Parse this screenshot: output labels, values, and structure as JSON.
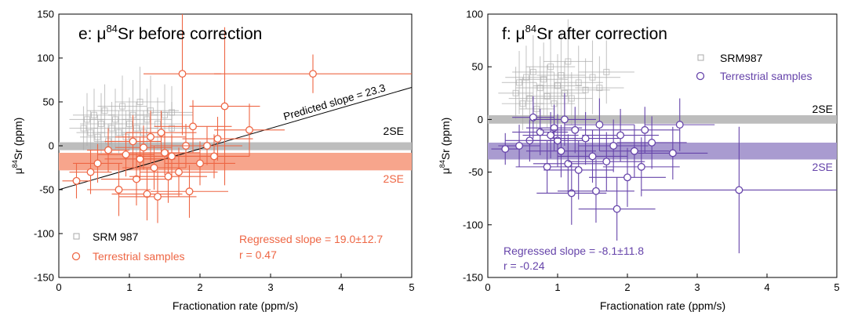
{
  "chart_data": [
    {
      "type": "scatter",
      "panel_title": "e: μ⁸⁴Sr before correction",
      "title_prefix": "e: μ",
      "title_sup": "84",
      "title_suffix": "Sr before correction",
      "xlabel": "Fractionation rate (ppm/s)",
      "ylabel_prefix": "μ",
      "ylabel_sup": "84",
      "ylabel_suffix": "Sr (ppm)",
      "xlim": [
        0,
        5
      ],
      "ylim": [
        -150,
        150
      ],
      "xticks": [
        "0",
        "1",
        "2",
        "3",
        "4",
        "5"
      ],
      "yticks": [
        "-150",
        "-100",
        "-50",
        "0",
        "50",
        "100",
        "150"
      ],
      "grid": false,
      "legend_position": "bottom-left",
      "colors": {
        "srm": "#aaaaaa",
        "terrestrial": "#ee6644",
        "band_srm": "#bdbdbd",
        "band_terr": "#f7a58c"
      },
      "bands": [
        {
          "name": "srm-2se",
          "y": [
            -5,
            4
          ],
          "label": "2SE"
        },
        {
          "name": "terrestrial-2se",
          "y": [
            -28,
            -8
          ],
          "label": "2SE"
        }
      ],
      "lines": [
        {
          "name": "predicted",
          "x": [
            0,
            5
          ],
          "y": [
            -50,
            66.5
          ],
          "label": "Predicted slope = 23.3"
        }
      ],
      "annotations": [
        {
          "text": "Regressed slope = 19.0±12.7",
          "color": "#ee6644"
        },
        {
          "text": "r = 0.47",
          "color": "#ee6644"
        }
      ],
      "series": [
        {
          "name": "SRM 987",
          "marker": "square",
          "points": [
            {
              "x": 0.35,
              "y": 20,
              "xerr": 0.2,
              "yerr": 25
            },
            {
              "x": 0.4,
              "y": 30,
              "xerr": 0.25,
              "yerr": 30
            },
            {
              "x": 0.45,
              "y": 15,
              "xerr": 0.2,
              "yerr": 25
            },
            {
              "x": 0.5,
              "y": 35,
              "xerr": 0.3,
              "yerr": 30
            },
            {
              "x": 0.55,
              "y": 10,
              "xerr": 0.25,
              "yerr": 25
            },
            {
              "x": 0.6,
              "y": 25,
              "xerr": 0.3,
              "yerr": 35
            },
            {
              "x": 0.65,
              "y": 40,
              "xerr": 0.25,
              "yerr": 30
            },
            {
              "x": 0.7,
              "y": 5,
              "xerr": 0.2,
              "yerr": 20
            },
            {
              "x": 0.75,
              "y": 20,
              "xerr": 0.3,
              "yerr": 30
            },
            {
              "x": 0.8,
              "y": 30,
              "xerr": 0.35,
              "yerr": 35
            },
            {
              "x": 0.85,
              "y": 15,
              "xerr": 0.3,
              "yerr": 25
            },
            {
              "x": 0.9,
              "y": 45,
              "xerr": 0.35,
              "yerr": 35
            },
            {
              "x": 0.95,
              "y": 10,
              "xerr": 0.3,
              "yerr": 30
            },
            {
              "x": 1.0,
              "y": 25,
              "xerr": 0.3,
              "yerr": 30
            },
            {
              "x": 1.05,
              "y": 35,
              "xerr": 0.35,
              "yerr": 40
            },
            {
              "x": 1.1,
              "y": 20,
              "xerr": 0.3,
              "yerr": 30
            },
            {
              "x": 1.15,
              "y": 50,
              "xerr": 0.35,
              "yerr": 40
            },
            {
              "x": 1.2,
              "y": 15,
              "xerr": 0.3,
              "yerr": 25
            },
            {
              "x": 1.25,
              "y": 30,
              "xerr": 0.35,
              "yerr": 35
            },
            {
              "x": 1.3,
              "y": 40,
              "xerr": 0.4,
              "yerr": 40
            },
            {
              "x": 1.4,
              "y": 25,
              "xerr": 0.35,
              "yerr": 30
            },
            {
              "x": 1.5,
              "y": 35,
              "xerr": 0.4,
              "yerr": 35
            },
            {
              "x": 1.6,
              "y": 20,
              "xerr": 0.35,
              "yerr": 30
            },
            {
              "x": 1.6,
              "y": 38,
              "xerr": 0.3,
              "yerr": 30
            }
          ]
        },
        {
          "name": "Terrestrial samples",
          "marker": "circle",
          "points": [
            {
              "x": 0.25,
              "y": -40,
              "xerr": 0.2,
              "yerr": 20
            },
            {
              "x": 0.45,
              "y": -30,
              "xerr": 0.3,
              "yerr": 25
            },
            {
              "x": 0.55,
              "y": -20,
              "xerr": 0.35,
              "yerr": 22
            },
            {
              "x": 0.7,
              "y": -5,
              "xerr": 0.3,
              "yerr": 25
            },
            {
              "x": 0.85,
              "y": -50,
              "xerr": 0.45,
              "yerr": 30
            },
            {
              "x": 0.95,
              "y": -10,
              "xerr": 0.4,
              "yerr": 25
            },
            {
              "x": 1.05,
              "y": 5,
              "xerr": 0.4,
              "yerr": 30
            },
            {
              "x": 1.1,
              "y": -38,
              "xerr": 0.5,
              "yerr": 30
            },
            {
              "x": 1.15,
              "y": -15,
              "xerr": 0.5,
              "yerr": 25
            },
            {
              "x": 1.2,
              "y": -2,
              "xerr": 0.4,
              "yerr": 25
            },
            {
              "x": 1.25,
              "y": -55,
              "xerr": 0.5,
              "yerr": 30
            },
            {
              "x": 1.3,
              "y": 10,
              "xerr": 0.5,
              "yerr": 30
            },
            {
              "x": 1.35,
              "y": -25,
              "xerr": 0.45,
              "yerr": 25
            },
            {
              "x": 1.4,
              "y": -58,
              "xerr": 0.55,
              "yerr": 30
            },
            {
              "x": 1.45,
              "y": 15,
              "xerr": 0.5,
              "yerr": 25
            },
            {
              "x": 1.5,
              "y": -8,
              "xerr": 0.5,
              "yerr": 25
            },
            {
              "x": 1.55,
              "y": -35,
              "xerr": 0.55,
              "yerr": 30
            },
            {
              "x": 1.6,
              "y": -12,
              "xerr": 0.5,
              "yerr": 25
            },
            {
              "x": 1.7,
              "y": -30,
              "xerr": 0.55,
              "yerr": 28
            },
            {
              "x": 1.75,
              "y": 82,
              "xerr": 0.55,
              "yerr": 70
            },
            {
              "x": 1.8,
              "y": 0,
              "xerr": 0.5,
              "yerr": 25
            },
            {
              "x": 1.85,
              "y": -52,
              "xerr": 0.55,
              "yerr": 30
            },
            {
              "x": 1.9,
              "y": 22,
              "xerr": 0.55,
              "yerr": 30
            },
            {
              "x": 2.0,
              "y": -20,
              "xerr": 0.5,
              "yerr": 25
            },
            {
              "x": 2.1,
              "y": 0,
              "xerr": 0.5,
              "yerr": 22
            },
            {
              "x": 2.2,
              "y": -12,
              "xerr": 0.5,
              "yerr": 25
            },
            {
              "x": 2.25,
              "y": 8,
              "xerr": 0.5,
              "yerr": 25
            },
            {
              "x": 2.35,
              "y": 45,
              "xerr": 0.5,
              "yerr": 90
            },
            {
              "x": 2.7,
              "y": 18,
              "xerr": 0.5,
              "yerr": 30
            },
            {
              "x": 3.6,
              "y": 82,
              "xerr": 1.4,
              "yerr": 22
            }
          ]
        }
      ]
    },
    {
      "type": "scatter",
      "panel_title": "f: μ⁸⁴Sr after correction",
      "title_prefix": "f: μ",
      "title_sup": "84",
      "title_suffix": "Sr after correction",
      "xlabel": "Fractionation rate (ppm/s)",
      "ylabel_prefix": "μ",
      "ylabel_sup": "84",
      "ylabel_suffix": "Sr (ppm)",
      "xlim": [
        0,
        5
      ],
      "ylim": [
        -150,
        100
      ],
      "xticks": [
        "0",
        "1",
        "2",
        "3",
        "4",
        "5"
      ],
      "yticks": [
        "-150",
        "-100",
        "-50",
        "0",
        "50",
        "100"
      ],
      "grid": false,
      "legend_position": "top-right",
      "colors": {
        "srm": "#aaaaaa",
        "terrestrial": "#6644aa",
        "band_srm": "#bdbdbd",
        "band_terr": "#a99bd0"
      },
      "bands": [
        {
          "name": "srm-2se",
          "y": [
            -4,
            4
          ],
          "label": "2SE"
        },
        {
          "name": "terrestrial-2se",
          "y": [
            -38,
            -22
          ],
          "label": "2SE"
        }
      ],
      "annotations": [
        {
          "text": "Regressed slope = -8.1±11.8",
          "color": "#6644aa"
        },
        {
          "text": "r = -0.24",
          "color": "#6644aa"
        }
      ],
      "series": [
        {
          "name": "SRM987",
          "marker": "square",
          "points": [
            {
              "x": 0.4,
              "y": 25,
              "xerr": 0.25,
              "yerr": 25
            },
            {
              "x": 0.45,
              "y": 35,
              "xerr": 0.25,
              "yerr": 30
            },
            {
              "x": 0.5,
              "y": 15,
              "xerr": 0.3,
              "yerr": 25
            },
            {
              "x": 0.55,
              "y": 40,
              "xerr": 0.3,
              "yerr": 30
            },
            {
              "x": 0.6,
              "y": 20,
              "xerr": 0.3,
              "yerr": 30
            },
            {
              "x": 0.65,
              "y": 45,
              "xerr": 0.3,
              "yerr": 35
            },
            {
              "x": 0.7,
              "y": 10,
              "xerr": 0.25,
              "yerr": 25
            },
            {
              "x": 0.75,
              "y": 30,
              "xerr": 0.35,
              "yerr": 30
            },
            {
              "x": 0.8,
              "y": 38,
              "xerr": 0.35,
              "yerr": 35
            },
            {
              "x": 0.85,
              "y": 22,
              "xerr": 0.3,
              "yerr": 30
            },
            {
              "x": 0.9,
              "y": 50,
              "xerr": 0.35,
              "yerr": 35
            },
            {
              "x": 0.95,
              "y": 15,
              "xerr": 0.3,
              "yerr": 30
            },
            {
              "x": 1.0,
              "y": 32,
              "xerr": 0.35,
              "yerr": 30
            },
            {
              "x": 1.05,
              "y": 42,
              "xerr": 0.35,
              "yerr": 40
            },
            {
              "x": 1.1,
              "y": 25,
              "xerr": 0.3,
              "yerr": 30
            },
            {
              "x": 1.15,
              "y": 55,
              "xerr": 0.35,
              "yerr": 40
            },
            {
              "x": 1.2,
              "y": 20,
              "xerr": 0.3,
              "yerr": 25
            },
            {
              "x": 1.3,
              "y": 35,
              "xerr": 0.35,
              "yerr": 35
            },
            {
              "x": 1.4,
              "y": 28,
              "xerr": 0.35,
              "yerr": 30
            },
            {
              "x": 1.5,
              "y": 40,
              "xerr": 0.4,
              "yerr": 35
            },
            {
              "x": 1.6,
              "y": 30,
              "xerr": 0.35,
              "yerr": 30
            },
            {
              "x": 1.7,
              "y": 45,
              "xerr": 0.4,
              "yerr": 30
            }
          ]
        },
        {
          "name": "Terrestrial samples",
          "marker": "circle",
          "points": [
            {
              "x": 0.25,
              "y": -28,
              "xerr": 0.2,
              "yerr": 15
            },
            {
              "x": 0.45,
              "y": -25,
              "xerr": 0.3,
              "yerr": 20
            },
            {
              "x": 0.6,
              "y": -20,
              "xerr": 0.35,
              "yerr": 20
            },
            {
              "x": 0.65,
              "y": 2,
              "xerr": 0.3,
              "yerr": 20
            },
            {
              "x": 0.75,
              "y": -12,
              "xerr": 0.4,
              "yerr": 22
            },
            {
              "x": 0.85,
              "y": -45,
              "xerr": 0.45,
              "yerr": 25
            },
            {
              "x": 0.9,
              "y": -15,
              "xerr": 0.4,
              "yerr": 22
            },
            {
              "x": 0.95,
              "y": -8,
              "xerr": 0.4,
              "yerr": 22
            },
            {
              "x": 1.0,
              "y": -20,
              "xerr": 0.45,
              "yerr": 25
            },
            {
              "x": 1.05,
              "y": -30,
              "xerr": 0.5,
              "yerr": 25
            },
            {
              "x": 1.1,
              "y": 0,
              "xerr": 0.45,
              "yerr": 25
            },
            {
              "x": 1.15,
              "y": -42,
              "xerr": 0.5,
              "yerr": 28
            },
            {
              "x": 1.2,
              "y": -70,
              "xerr": 0.5,
              "yerr": 30
            },
            {
              "x": 1.25,
              "y": -10,
              "xerr": 0.5,
              "yerr": 22
            },
            {
              "x": 1.3,
              "y": -48,
              "xerr": 0.5,
              "yerr": 28
            },
            {
              "x": 1.4,
              "y": -18,
              "xerr": 0.5,
              "yerr": 25
            },
            {
              "x": 1.5,
              "y": -35,
              "xerr": 0.5,
              "yerr": 25
            },
            {
              "x": 1.55,
              "y": -68,
              "xerr": 0.55,
              "yerr": 30
            },
            {
              "x": 1.6,
              "y": -5,
              "xerr": 0.5,
              "yerr": 25
            },
            {
              "x": 1.7,
              "y": -40,
              "xerr": 0.55,
              "yerr": 28
            },
            {
              "x": 1.8,
              "y": -25,
              "xerr": 0.5,
              "yerr": 25
            },
            {
              "x": 1.85,
              "y": -85,
              "xerr": 0.55,
              "yerr": 30
            },
            {
              "x": 1.9,
              "y": -15,
              "xerr": 0.55,
              "yerr": 25
            },
            {
              "x": 2.0,
              "y": -55,
              "xerr": 0.55,
              "yerr": 28
            },
            {
              "x": 2.1,
              "y": -30,
              "xerr": 0.5,
              "yerr": 25
            },
            {
              "x": 2.2,
              "y": -45,
              "xerr": 0.55,
              "yerr": 28
            },
            {
              "x": 2.25,
              "y": -10,
              "xerr": 0.5,
              "yerr": 22
            },
            {
              "x": 2.35,
              "y": -22,
              "xerr": 0.5,
              "yerr": 25
            },
            {
              "x": 2.65,
              "y": -32,
              "xerr": 0.5,
              "yerr": 25
            },
            {
              "x": 2.75,
              "y": -5,
              "xerr": 0.5,
              "yerr": 25
            },
            {
              "x": 3.6,
              "y": -67,
              "xerr": 1.4,
              "yerr": 60
            }
          ]
        }
      ]
    }
  ]
}
